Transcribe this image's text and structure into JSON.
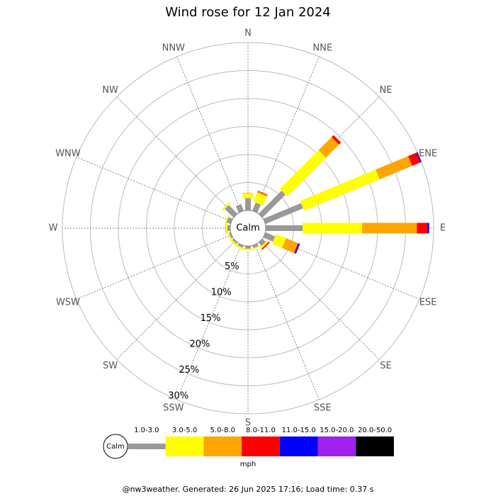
{
  "chart_data": {
    "type": "windrose",
    "title": "Wind rose for 12 Jan 2024",
    "calm_label": "Calm",
    "unit": "mph",
    "footer": "@nw3weather. Generated: 26 Jun 2025 17:16; Load time: 0.37 s",
    "categories": [
      "N",
      "NNE",
      "NE",
      "ENE",
      "E",
      "ESE",
      "SE",
      "SSE",
      "S",
      "SSW",
      "SW",
      "WSW",
      "W",
      "WNW",
      "NW",
      "NNW"
    ],
    "rlim": [
      0,
      30
    ],
    "rticks": [
      {
        "value": 5,
        "label": "5%"
      },
      {
        "value": 10,
        "label": "10%"
      },
      {
        "value": 15,
        "label": "15%"
      },
      {
        "value": 20,
        "label": "20%"
      },
      {
        "value": 25,
        "label": "25%"
      },
      {
        "value": 30,
        "label": "30%"
      }
    ],
    "series": [
      {
        "name": "1.0-3.0",
        "color": "#999999",
        "values": [
          2.2,
          1.6,
          5.8,
          7.3,
          6.6,
          1.9,
          0.8,
          0.5,
          0.5,
          0.4,
          0.3,
          0.3,
          0.5,
          0.8,
          2.2,
          1.3
        ]
      },
      {
        "name": "3.0-5.0",
        "color": "#ffff00",
        "values": [
          0.8,
          1.7,
          9.8,
          14.6,
          10.6,
          1.9,
          0.3,
          0.2,
          0.3,
          0.3,
          0.3,
          0.2,
          0.3,
          0.2,
          0.3,
          0
        ]
      },
      {
        "name": "5.0-8.0",
        "color": "#ffa500",
        "values": [
          0.1,
          0.3,
          3.3,
          6.3,
          9.8,
          2.3,
          0.1,
          0,
          0,
          0,
          0,
          0,
          0.1,
          0,
          0,
          0
        ]
      },
      {
        "name": "8.0-11.0",
        "color": "#ff0000",
        "values": [
          0,
          0.1,
          0.5,
          1.6,
          1.9,
          0.2,
          0.2,
          0,
          0,
          0,
          0,
          0,
          0,
          0,
          0,
          0
        ]
      },
      {
        "name": "11.0-15.0",
        "color": "#0000ff",
        "values": [
          0,
          0,
          0,
          0.2,
          0.3,
          0.2,
          0,
          0,
          0,
          0,
          0,
          0,
          0,
          0,
          0,
          0
        ]
      },
      {
        "name": "15.0-20.0",
        "color": "#a020f0",
        "values": [
          0,
          0,
          0,
          0,
          0,
          0,
          0,
          0,
          0,
          0,
          0,
          0,
          0,
          0,
          0,
          0
        ]
      },
      {
        "name": "20.0-50.0",
        "color": "#000000",
        "values": [
          0,
          0,
          0,
          0,
          0,
          0,
          0,
          0,
          0,
          0,
          0,
          0,
          0,
          0,
          0,
          0
        ]
      }
    ]
  }
}
